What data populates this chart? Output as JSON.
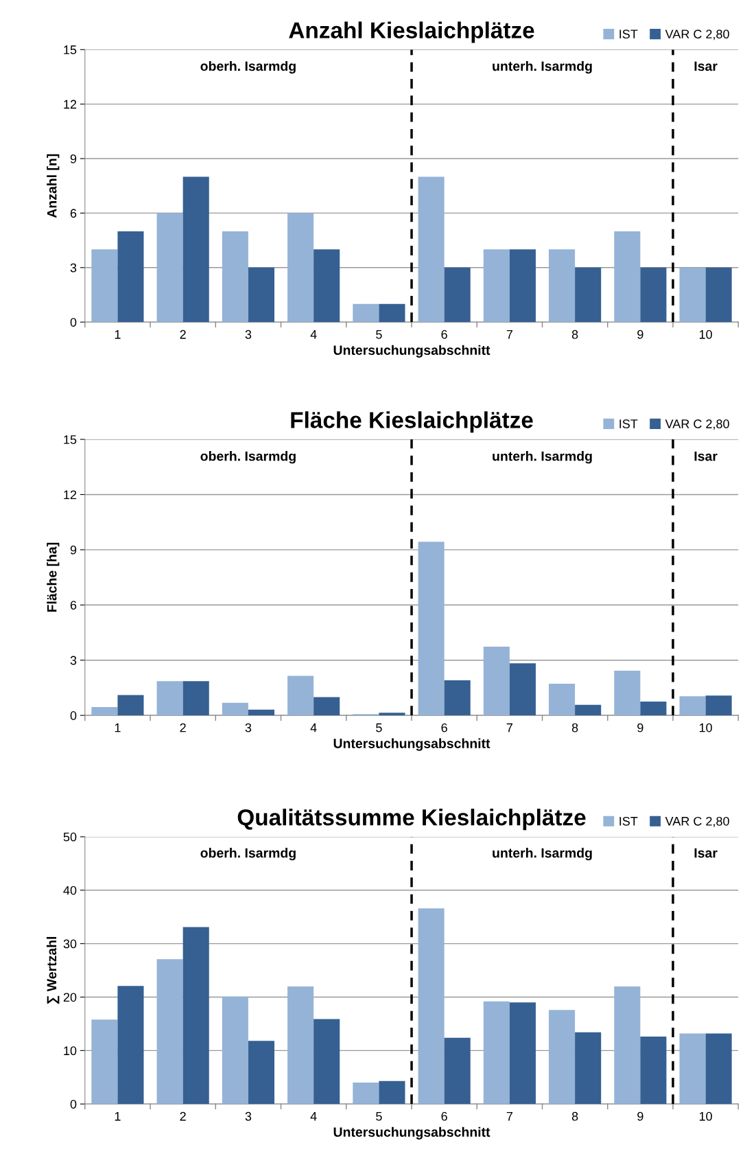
{
  "chart_data": [
    {
      "type": "bar",
      "title": "Anzahl Kieslaichplätze",
      "xlabel": "Untersuchungsabschnitt",
      "ylabel": "Anzahl [n]",
      "x": [
        1,
        2,
        3,
        4,
        5,
        6,
        7,
        8,
        9,
        10
      ],
      "xlim": [
        0.5,
        10.5
      ],
      "xticks": [
        1,
        2,
        3,
        4,
        5,
        6,
        7,
        8,
        9,
        10
      ],
      "ylim": [
        0,
        15
      ],
      "yticks": [
        0,
        3,
        6,
        9,
        12,
        15
      ],
      "grid": "y",
      "legend": "top right",
      "series": [
        {
          "name": "IST",
          "color": "#95b3d7",
          "values": [
            4,
            6,
            5,
            6,
            1,
            8,
            4,
            4,
            5,
            3
          ]
        },
        {
          "name": "VAR C 2,80",
          "color": "#366092",
          "values": [
            5,
            8,
            3,
            4,
            1,
            3,
            4,
            3,
            3,
            3
          ]
        }
      ],
      "ref_lines": [
        {
          "axis": "x",
          "value": 5.5,
          "color": "#000000",
          "line_style": "dashed"
        },
        {
          "axis": "x",
          "value": 9.5,
          "color": "#000000",
          "line_style": "dashed"
        }
      ],
      "annotations": [
        "oberh. Isarmdg",
        "unterh. Isarmdg",
        "Isar"
      ]
    },
    {
      "type": "bar",
      "title": "Fläche Kieslaichplätze",
      "xlabel": "Untersuchungsabschnitt",
      "ylabel": "Fläche [ha]",
      "x": [
        1,
        2,
        3,
        4,
        5,
        6,
        7,
        8,
        9,
        10
      ],
      "xlim": [
        0.5,
        10.5
      ],
      "xticks": [
        1,
        2,
        3,
        4,
        5,
        6,
        7,
        8,
        9,
        10
      ],
      "ylim": [
        0,
        15
      ],
      "yticks": [
        0,
        3,
        6,
        9,
        12,
        15
      ],
      "grid": "y",
      "legend": "top right",
      "series": [
        {
          "name": "IST",
          "color": "#95b3d7",
          "values": [
            0.45,
            1.86,
            0.68,
            2.15,
            0.07,
            9.43,
            3.73,
            1.72,
            2.43,
            1.04
          ]
        },
        {
          "name": "VAR C 2,80",
          "color": "#366092",
          "values": [
            1.1,
            1.86,
            0.31,
            0.99,
            0.14,
            1.91,
            2.83,
            0.57,
            0.75,
            1.08
          ]
        }
      ],
      "ref_lines": [
        {
          "axis": "x",
          "value": 5.5,
          "color": "#000000",
          "line_style": "dashed"
        },
        {
          "axis": "x",
          "value": 9.5,
          "color": "#000000",
          "line_style": "dashed"
        }
      ],
      "annotations": [
        "oberh. Isarmdg",
        "unterh. Isarmdg",
        "Isar"
      ]
    },
    {
      "type": "bar",
      "title": "Qualitätssumme Kieslaichplätze",
      "xlabel": "Untersuchungsabschnitt",
      "ylabel": "∑ Wertzahl",
      "x": [
        1,
        2,
        3,
        4,
        5,
        6,
        7,
        8,
        9,
        10
      ],
      "xlim": [
        0.5,
        10.5
      ],
      "xticks": [
        1,
        2,
        3,
        4,
        5,
        6,
        7,
        8,
        9,
        10
      ],
      "ylim": [
        0,
        50
      ],
      "yticks": [
        0,
        10,
        20,
        30,
        40,
        50
      ],
      "grid": "y",
      "legend": "top right",
      "series": [
        {
          "name": "IST",
          "color": "#95b3d7",
          "values": [
            15.8,
            27.1,
            20.1,
            22.0,
            4.0,
            36.6,
            19.2,
            17.6,
            22.0,
            13.2
          ]
        },
        {
          "name": "VAR C 2,80",
          "color": "#366092",
          "values": [
            22.1,
            33.1,
            11.8,
            15.9,
            4.3,
            12.4,
            19.0,
            13.4,
            12.6,
            13.2
          ]
        }
      ],
      "ref_lines": [
        {
          "axis": "x",
          "value": 5.5,
          "color": "#000000",
          "line_style": "dashed"
        },
        {
          "axis": "x",
          "value": 9.5,
          "color": "#000000",
          "line_style": "dashed"
        }
      ],
      "annotations": [
        "oberh. Isarmdg",
        "unterh. Isarmdg",
        "Isar"
      ]
    }
  ]
}
